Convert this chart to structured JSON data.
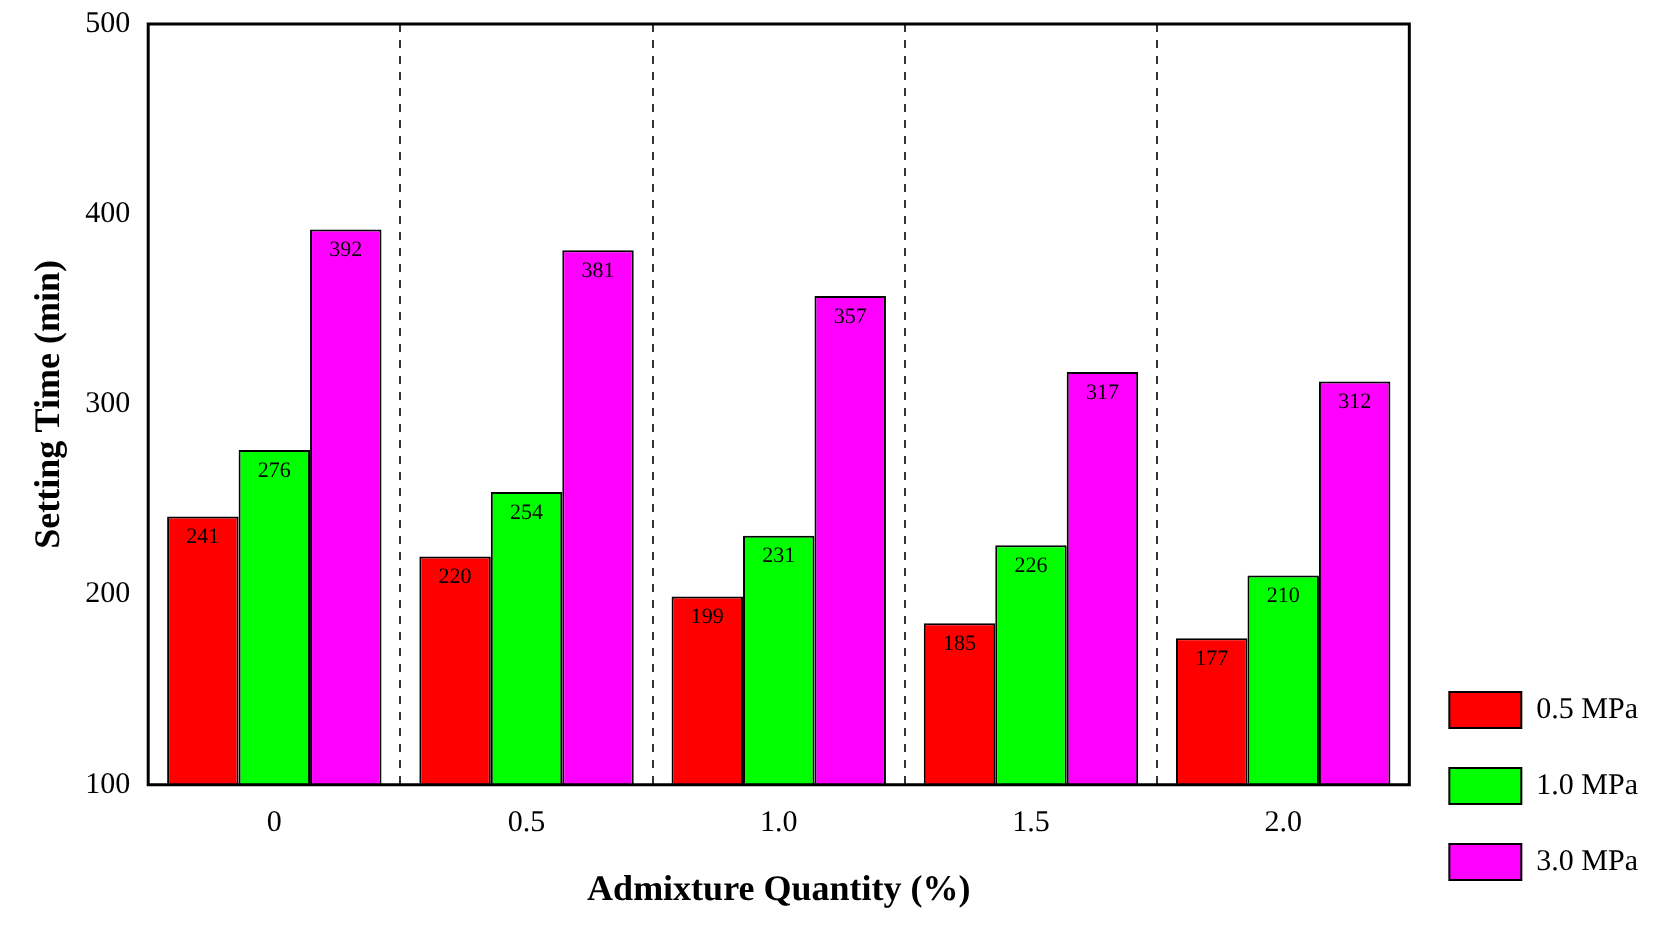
{
  "chart_data": {
    "type": "bar",
    "xlabel": "Admixture Quantity (%)",
    "ylabel": "Setting Time (min)",
    "categories": [
      "0",
      "0.5",
      "1.0",
      "1.5",
      "2.0"
    ],
    "series": [
      {
        "name": "0.5 MPa",
        "color": "#ff0000",
        "values": [
          241,
          220,
          199,
          185,
          177
        ]
      },
      {
        "name": "1.0 MPa",
        "color": "#00ff00",
        "values": [
          276,
          254,
          231,
          226,
          210
        ]
      },
      {
        "name": "3.0 MPa",
        "color": "#ff00ff",
        "values": [
          392,
          381,
          357,
          317,
          312
        ]
      }
    ],
    "ylim": [
      100,
      500
    ],
    "yticks": [
      100,
      200,
      300,
      400,
      500
    ],
    "grid": "x",
    "line_style": "dashed",
    "legend": "right",
    "data_labels": true
  }
}
